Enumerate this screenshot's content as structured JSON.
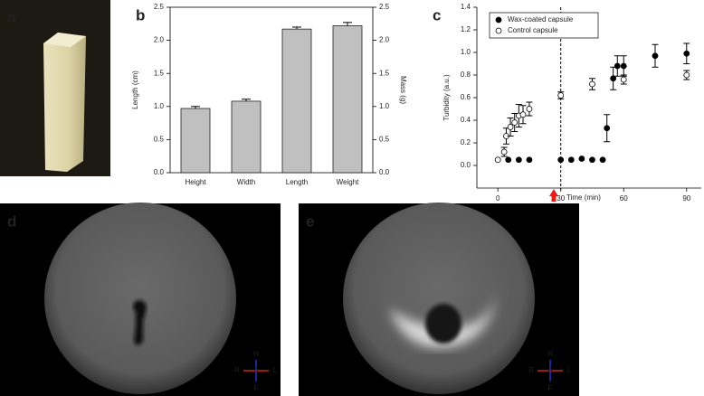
{
  "panel_labels": [
    "a",
    "b",
    "c",
    "d",
    "e"
  ],
  "orientation_labels": {
    "top": "H",
    "left": "R",
    "center": "A",
    "right": "L",
    "bottom": "F"
  },
  "chart_data": [
    {
      "type": "bar",
      "categories": [
        "Height",
        "Width",
        "Length",
        "Weight"
      ],
      "values": [
        0.97,
        1.08,
        2.17,
        2.22
      ],
      "errors": [
        0.03,
        0.03,
        0.03,
        0.05
      ],
      "color": "#c0c0c0",
      "y_label": "Length (cm)",
      "y2_label": "Mass (g)",
      "ylim": [
        0,
        2.5
      ],
      "yticks": [
        {
          "value": 0,
          "label": "0.0"
        },
        0.5,
        {
          "value": 1,
          "label": "1.0"
        },
        1.5,
        {
          "value": 2,
          "label": "2.0"
        },
        2.5
      ],
      "y2lim": [
        0,
        2.5
      ],
      "y2ticks": [
        {
          "value": 0,
          "label": "0.0"
        },
        0.5,
        {
          "value": 1,
          "label": "1.0"
        },
        1.5,
        {
          "value": 2,
          "label": "2.0"
        },
        2.5
      ]
    },
    {
      "type": "scatter",
      "x_label": "Time (min)",
      "y_label": "Turbidity (a.u.)",
      "xlim": [
        -10,
        97
      ],
      "xticks": [
        0,
        30,
        60,
        90
      ],
      "ylim": [
        -0.2,
        1.4
      ],
      "yticks": [
        {
          "value": 0,
          "label": "0.0"
        },
        0.2,
        0.4,
        0.6,
        0.8,
        {
          "value": 1,
          "label": "1.0"
        },
        1.2,
        1.4
      ],
      "vline": 30,
      "legend": "upper left",
      "series": [
        {
          "name": "Wax-coated capsule",
          "color": "#000000",
          "x": [
            5,
            10,
            15,
            30,
            35,
            40,
            45,
            50,
            52,
            55,
            57,
            60,
            75,
            90
          ],
          "values": [
            0.05,
            0.05,
            0.05,
            0.05,
            0.05,
            0.06,
            0.05,
            0.05,
            0.33,
            0.77,
            0.88,
            0.88,
            0.97,
            0.99
          ],
          "errors": [
            0,
            0,
            0,
            0,
            0,
            0,
            0,
            0,
            0.12,
            0.1,
            0.09,
            0.09,
            0.1,
            0.09
          ]
        },
        {
          "name": "Control capsule",
          "color": "#ffffff",
          "x": [
            0,
            3,
            4,
            6,
            8,
            10,
            12,
            15,
            30,
            45,
            60,
            90
          ],
          "values": [
            0.05,
            0.12,
            0.26,
            0.34,
            0.38,
            0.44,
            0.45,
            0.5,
            0.62,
            0.72,
            0.76,
            0.8
          ],
          "errors": [
            0,
            0.04,
            0.07,
            0.08,
            0.08,
            0.1,
            0.08,
            0.06,
            0.03,
            0.05,
            0.04,
            0.04
          ]
        }
      ]
    }
  ]
}
